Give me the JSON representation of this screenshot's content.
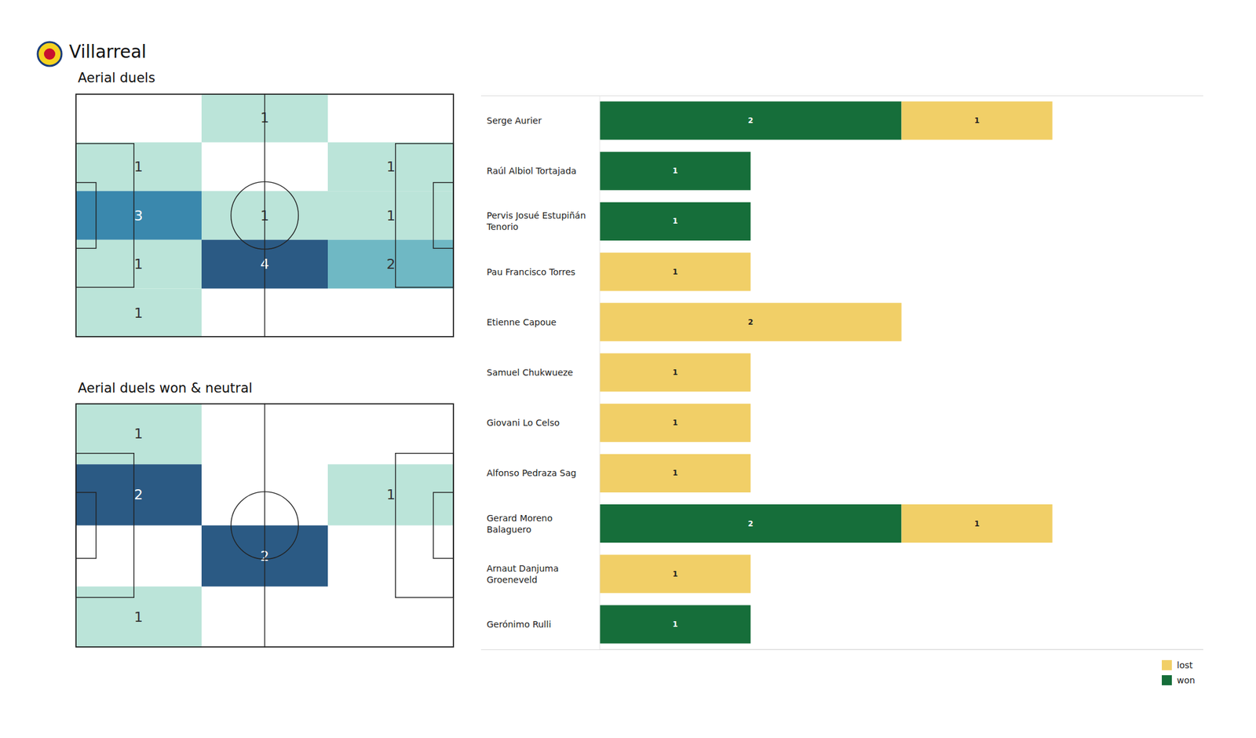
{
  "title": "Villarreal",
  "chart_data": [
    {
      "type": "heatmap",
      "title": "Aerial duels",
      "cells": [
        [
          null,
          1,
          null
        ],
        [
          1,
          null,
          1
        ],
        [
          3,
          1,
          1
        ],
        [
          1,
          4,
          2
        ],
        [
          1,
          null,
          null
        ]
      ],
      "data_labels": true,
      "tick_labels": false
    },
    {
      "type": "heatmap",
      "title": "Aerial duels won & neutral",
      "cells": [
        [
          1,
          null,
          null
        ],
        [
          2,
          null,
          1
        ],
        [
          null,
          2,
          null
        ],
        [
          1,
          null,
          null
        ]
      ],
      "data_labels": true,
      "tick_labels": false
    },
    {
      "type": "bar",
      "orientation": "horizontal",
      "stacked": true,
      "categories": [
        "Serge Aurier",
        "Raúl Albiol Tortajada",
        "Pervis Josué Estupiñán Tenorio",
        "Pau Francisco Torres",
        "Etienne Capoue",
        "Samuel Chukwueze",
        "Giovani Lo Celso",
        "Alfonso Pedraza Sag",
        "Gerard Moreno Balaguero",
        "Arnaut Danjuma Groeneveld",
        "Gerónimo Rulli"
      ],
      "series": [
        {
          "name": "won",
          "color": "#166e3a",
          "values": [
            2,
            1,
            1,
            null,
            null,
            null,
            null,
            null,
            2,
            null,
            1
          ]
        },
        {
          "name": "lost",
          "color": "#f1cf67",
          "values": [
            1,
            null,
            null,
            1,
            2,
            1,
            1,
            1,
            1,
            1,
            null
          ]
        }
      ],
      "xlim": [
        0,
        4
      ],
      "data_labels": true,
      "tick_labels": "y",
      "legend": "lower right"
    }
  ]
}
